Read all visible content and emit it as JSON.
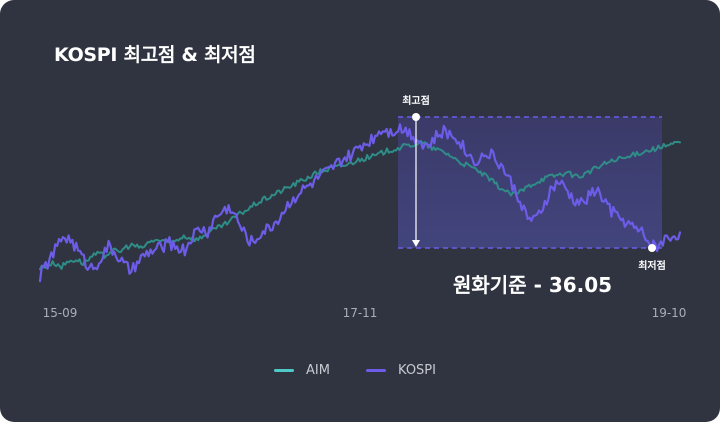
{
  "title": "KOSPI 최고점 & 최저점",
  "colors": {
    "background": "#2f3440",
    "aim": "#2f8c87",
    "kospi": "#6c5ce7",
    "legend_aim": "#4fc8c6",
    "legend_kospi": "#6c5ce7",
    "dashed": "#6c5ce7",
    "highlight": "#4a4a86"
  },
  "chart_data": {
    "type": "line",
    "title": "KOSPI 최고점 & 최저점",
    "xlabel": "",
    "ylabel": "",
    "x_ticks": [
      "15-09",
      "17-11",
      "19-10"
    ],
    "grid": false,
    "legend_position": "bottom-center",
    "ylim": [
      0,
      100
    ],
    "series": [
      {
        "name": "AIM",
        "values": [
          12,
          14,
          15,
          13,
          16,
          17,
          15,
          18,
          20,
          19,
          22,
          21,
          24,
          25,
          23,
          26,
          28,
          27,
          26,
          28,
          30,
          29,
          28,
          31,
          33,
          35,
          37,
          40,
          43,
          45,
          48,
          50,
          52,
          54,
          56,
          58,
          60,
          62,
          64,
          66,
          67,
          68,
          69,
          70,
          72,
          73,
          74,
          75,
          77,
          78,
          79,
          80,
          81,
          82,
          80,
          78,
          77,
          75,
          72,
          70,
          68,
          66,
          63,
          60,
          57,
          54,
          53,
          55,
          58,
          60,
          62,
          63,
          64,
          65,
          64,
          63,
          65,
          67,
          69,
          71,
          72,
          73,
          74,
          76,
          77,
          78,
          79,
          80,
          81,
          82
        ]
      },
      {
        "name": "KOSPI",
        "values": [
          8,
          15,
          22,
          30,
          28,
          22,
          15,
          12,
          18,
          24,
          20,
          14,
          10,
          16,
          20,
          22,
          24,
          26,
          24,
          22,
          30,
          34,
          32,
          40,
          44,
          46,
          38,
          30,
          26,
          32,
          34,
          38,
          44,
          50,
          54,
          57,
          60,
          64,
          66,
          70,
          73,
          75,
          80,
          82,
          86,
          90,
          88,
          90,
          89,
          86,
          82,
          80,
          85,
          88,
          86,
          84,
          76,
          72,
          74,
          76,
          72,
          66,
          58,
          50,
          40,
          38,
          46,
          55,
          60,
          56,
          50,
          48,
          52,
          56,
          50,
          44,
          40,
          38,
          34,
          32,
          26,
          24,
          28,
          30,
          32
        ]
      }
    ],
    "annotations": {
      "high_label": "최고점",
      "low_label": "최저점",
      "range_label": "원화기준 - 36.05"
    }
  },
  "legend": [
    {
      "label": "AIM",
      "color": "#4fc8c6"
    },
    {
      "label": "KOSPI",
      "color": "#6c5ce7"
    }
  ]
}
